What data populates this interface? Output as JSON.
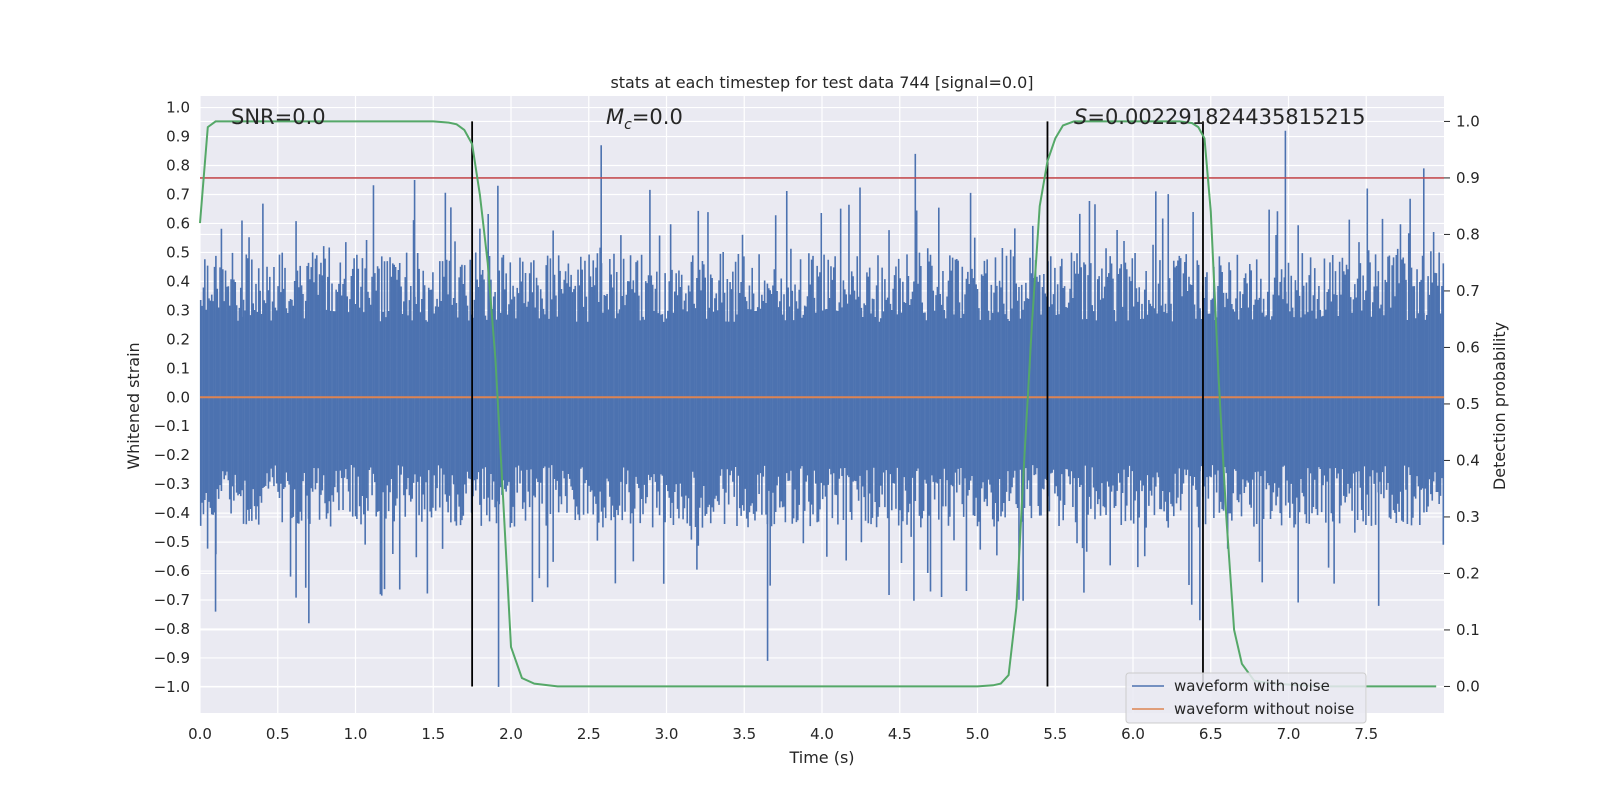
{
  "chart_data": {
    "type": "line",
    "title": "stats at each timestep for test data 744 [signal=0.0]",
    "xlabel": "Time (s)",
    "ylabel": "Whitened strain",
    "y2label": "Detection probability",
    "xlim": [
      0.0,
      8.0
    ],
    "ylim": [
      -1.09,
      1.04
    ],
    "y2lim": [
      -0.047,
      1.045
    ],
    "xticks": [
      "0.0",
      "0.5",
      "1.0",
      "1.5",
      "2.0",
      "2.5",
      "3.0",
      "3.5",
      "4.0",
      "4.5",
      "5.0",
      "5.5",
      "6.0",
      "6.5",
      "7.0",
      "7.5"
    ],
    "yticks": [
      "1.0",
      "0.9",
      "0.8",
      "0.7",
      "0.6",
      "0.5",
      "0.4",
      "0.3",
      "0.2",
      "0.1",
      "0.0",
      "-0.1",
      "-0.2",
      "-0.3",
      "-0.4",
      "-0.5",
      "-0.6",
      "-0.7",
      "-0.8",
      "-0.9",
      "-1.0"
    ],
    "y2ticks": [
      "1.0",
      "0.9",
      "0.8",
      "0.7",
      "0.6",
      "0.5",
      "0.4",
      "0.3",
      "0.2",
      "0.1",
      "0.0"
    ],
    "annotations": {
      "snr": "SNR=0.0",
      "mc_symbol": "M",
      "mc_sub": "c",
      "mc_value": "=0.0",
      "s_symbol": "S",
      "s_value": "=0.002291824435815215"
    },
    "threshold_probability": 0.9,
    "vertical_markers_x": [
      1.75,
      5.45,
      6.45
    ],
    "waveform_without_noise": {
      "x": [
        0.0,
        8.0
      ],
      "y": [
        0.0,
        0.0
      ]
    },
    "waveform_with_noise_envelope": {
      "typical_range": [
        -0.45,
        0.5
      ],
      "peaks": [
        {
          "x": 0.27,
          "y": 0.61
        },
        {
          "x": 1.38,
          "y": 0.75
        },
        {
          "x": 2.58,
          "y": 0.87
        },
        {
          "x": 4.6,
          "y": 0.84
        },
        {
          "x": 6.98,
          "y": 0.92
        },
        {
          "x": 7.87,
          "y": 0.79
        }
      ],
      "troughs": [
        {
          "x": 0.1,
          "y": -0.74
        },
        {
          "x": 0.7,
          "y": -0.78
        },
        {
          "x": 1.92,
          "y": -1.0
        },
        {
          "x": 3.65,
          "y": -0.91
        },
        {
          "x": 6.43,
          "y": -0.77
        },
        {
          "x": 7.58,
          "y": -0.72
        }
      ]
    },
    "series": [
      {
        "name": "waveform with noise",
        "color": "#4c72b0"
      },
      {
        "name": "waveform without noise",
        "color": "#dd8452"
      },
      {
        "name": "detection probability",
        "color": "#55a868",
        "axis": "right",
        "x": [
          0.0,
          0.05,
          0.1,
          0.15,
          0.2,
          0.4,
          0.8,
          1.2,
          1.5,
          1.6,
          1.65,
          1.7,
          1.75,
          1.8,
          1.85,
          1.9,
          1.95,
          2.0,
          2.07,
          2.15,
          2.3,
          3.0,
          4.0,
          4.7,
          5.0,
          5.1,
          5.15,
          5.2,
          5.25,
          5.3,
          5.35,
          5.4,
          5.45,
          5.5,
          5.55,
          5.62,
          5.7,
          5.8,
          6.3,
          6.38,
          6.42,
          6.46,
          6.5,
          6.55,
          6.6,
          6.65,
          6.7,
          6.78,
          6.9,
          7.2,
          7.5,
          7.95
        ],
        "y": [
          0.82,
          0.99,
          1.0,
          1.0,
          1.0,
          1.0,
          1.0,
          1.0,
          1.0,
          0.998,
          0.995,
          0.985,
          0.96,
          0.87,
          0.75,
          0.58,
          0.33,
          0.07,
          0.015,
          0.005,
          0.0,
          0.0,
          0.0,
          0.0,
          0.0,
          0.002,
          0.005,
          0.02,
          0.14,
          0.4,
          0.64,
          0.85,
          0.93,
          0.97,
          0.993,
          1.0,
          1.0,
          1.0,
          1.0,
          0.997,
          0.99,
          0.97,
          0.84,
          0.55,
          0.3,
          0.1,
          0.04,
          0.01,
          0.005,
          0.0,
          0.0,
          0.0
        ]
      }
    ],
    "legend": {
      "position": "lower-right",
      "entries": [
        {
          "label": "waveform with noise",
          "color": "#4c72b0"
        },
        {
          "label": "waveform without noise",
          "color": "#dd8452"
        }
      ]
    },
    "colors": {
      "background": "#eaeaf2",
      "grid": "#ffffff",
      "threshold": "#c44e52",
      "marker": "#000000"
    }
  }
}
